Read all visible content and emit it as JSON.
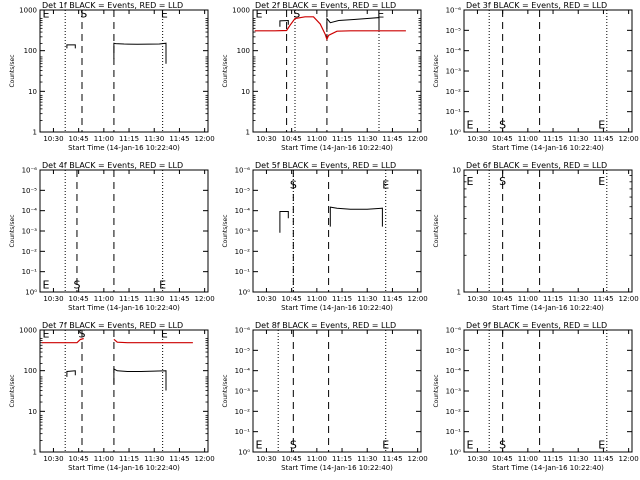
{
  "colors": {
    "events": "#000000",
    "lld": "#cc0000",
    "axes": "#000000",
    "background": "#ffffff"
  },
  "chart_data": [
    {
      "type": "line",
      "title": "Det 1f BLACK = Events, RED = LLD",
      "xlabel": "Start Time (14-Jan-16 10:22:40)",
      "ylabel": "Counts/sec",
      "x_tick_labels": [
        "10:30",
        "10:45",
        "11:00",
        "11:15",
        "11:30",
        "11:45",
        "12:00"
      ],
      "xlim_minutes_after_1030": [
        -8,
        92
      ],
      "y_scale": "log",
      "y_tick_labels": [
        "1",
        "10",
        "100",
        "1000"
      ],
      "ylim": [
        1,
        1500
      ],
      "dotted_lines_at": [
        "10:37",
        "11:35"
      ],
      "dashed_lines_at": [
        "10:47",
        "11:06"
      ],
      "markers": [
        {
          "text": "E",
          "x": "10:25",
          "y": 1300
        },
        {
          "text": "S",
          "x": "10:48",
          "y": 1300
        },
        {
          "text": "E",
          "x": "11:36",
          "y": 1300
        }
      ],
      "series": [
        {
          "color": "events",
          "points": [
            [
              "10:38",
              150
            ],
            [
              "10:38",
              185
            ],
            [
              "10:43",
              185
            ],
            [
              "10:43",
              150
            ]
          ]
        },
        {
          "color": "events",
          "points": [
            [
              "11:06",
              80
            ],
            [
              "11:06",
              205
            ],
            [
              "11:07",
              200
            ],
            [
              "11:12",
              195
            ],
            [
              "11:20",
              192
            ],
            [
              "11:27",
              194
            ],
            [
              "11:33",
              195
            ],
            [
              "11:37",
              205
            ],
            [
              "11:37",
              60
            ]
          ]
        }
      ]
    },
    {
      "type": "line",
      "title": "Det 2f BLACK = Events, RED = LLD",
      "xlabel": "Start Time (14-Jan-16 10:22:40)",
      "ylabel": "Counts/sec",
      "x_tick_labels": [
        "10:30",
        "10:45",
        "11:00",
        "11:15",
        "11:30",
        "11:45",
        "12:00"
      ],
      "xlim_minutes_after_1030": [
        -8,
        92
      ],
      "y_scale": "log",
      "y_tick_labels": [
        "1",
        "10",
        "100",
        "1000"
      ],
      "ylim": [
        1,
        1500
      ],
      "dotted_lines_at": [
        "10:47",
        "11:37"
      ],
      "dashed_lines_at": [
        "10:42",
        "11:06"
      ],
      "markers": [
        {
          "text": "E",
          "x": "10:25",
          "y": 1300
        },
        {
          "text": "S",
          "x": "10:48",
          "y": 1300
        },
        {
          "text": "E",
          "x": "11:38",
          "y": 1300
        }
      ],
      "series": [
        {
          "color": "lld",
          "points": [
            [
              "10:23",
              430
            ],
            [
              "10:35",
              430
            ],
            [
              "10:42",
              440
            ],
            [
              "10:44",
              600
            ],
            [
              "10:47",
              900
            ],
            [
              "10:53",
              1000
            ],
            [
              "10:58",
              1000
            ],
            [
              "11:02",
              650
            ],
            [
              "11:05",
              350
            ],
            [
              "11:06",
              260
            ],
            [
              "11:07",
              330
            ],
            [
              "11:12",
              420
            ],
            [
              "11:20",
              430
            ],
            [
              "11:35",
              430
            ],
            [
              "11:45",
              430
            ],
            [
              "11:53",
              430
            ]
          ]
        },
        {
          "color": "events",
          "points": [
            [
              "10:38",
              550
            ],
            [
              "10:38",
              780
            ],
            [
              "10:43",
              800
            ],
            [
              "10:43",
              620
            ]
          ]
        },
        {
          "color": "events",
          "points": [
            [
              "11:06",
              400
            ],
            [
              "11:06",
              900
            ],
            [
              "11:08",
              700
            ],
            [
              "11:13",
              800
            ],
            [
              "11:22",
              850
            ],
            [
              "11:30",
              900
            ],
            [
              "11:37",
              950
            ],
            [
              "11:37",
              450
            ]
          ]
        }
      ]
    },
    {
      "type": "line",
      "title": "Det 3f BLACK = Events, RED = LLD",
      "xlabel": "Start Time (14-Jan-16 10:22:40)",
      "ylabel": "Counts/sec",
      "x_tick_labels": [
        "10:30",
        "10:45",
        "11:00",
        "11:15",
        "11:30",
        "11:45",
        "12:00"
      ],
      "xlim_minutes_after_1030": [
        -8,
        92
      ],
      "y_scale": "log",
      "y_tick_labels": [
        "10⁰",
        "10⁻¹",
        "10⁻²",
        "10⁻³",
        "10⁻⁴",
        "10⁻⁵",
        "10⁻⁶"
      ],
      "ylim": [
        1,
        2
      ],
      "dotted_lines_at": [
        "10:37",
        "11:47"
      ],
      "dashed_lines_at": [
        "10:45",
        "11:07"
      ],
      "markers": [
        {
          "text": "E",
          "x": "10:25",
          "y": 1.05
        },
        {
          "text": "S",
          "x": "10:45",
          "y": 1.05
        },
        {
          "text": "E",
          "x": "11:44",
          "y": 1.05
        }
      ],
      "series": []
    },
    {
      "type": "line",
      "title": "Det 4f BLACK = Events, RED = LLD",
      "xlabel": "Start Time (14-Jan-16 10:22:40)",
      "ylabel": "Counts/sec",
      "x_tick_labels": [
        "10:30",
        "10:45",
        "11:00",
        "11:15",
        "11:30",
        "11:45",
        "12:00"
      ],
      "xlim_minutes_after_1030": [
        -8,
        92
      ],
      "y_scale": "log",
      "y_tick_labels": [
        "10⁰",
        "10⁻¹",
        "10⁻²",
        "10⁻³",
        "10⁻⁴",
        "10⁻⁵",
        "10⁻⁶"
      ],
      "ylim": [
        1,
        2
      ],
      "dotted_lines_at": [
        "10:37",
        "11:35"
      ],
      "dashed_lines_at": [
        "10:44",
        "11:06"
      ],
      "markers": [
        {
          "text": "E",
          "x": "10:25",
          "y": 1.05
        },
        {
          "text": "S",
          "x": "10:44",
          "y": 1.05
        },
        {
          "text": "E",
          "x": "11:35",
          "y": 1.05
        }
      ],
      "series": []
    },
    {
      "type": "line",
      "title": "Det 5f BLACK = Events, RED = LLD",
      "xlabel": "Start Time (14-Jan-16 10:22:40)",
      "ylabel": "Counts/sec",
      "x_tick_labels": [
        "10:30",
        "10:45",
        "11:00",
        "11:15",
        "11:30",
        "11:45",
        "12:00"
      ],
      "xlim_minutes_after_1030": [
        -8,
        92
      ],
      "y_scale": "log",
      "y_tick_labels": [
        "10⁰",
        "10⁻¹",
        "10⁻²",
        "10⁻³",
        "10⁻⁴",
        "10⁻⁵",
        "10⁻⁶"
      ],
      "ylim": [
        1,
        2
      ],
      "dotted_lines_at": [
        "10:46",
        "11:41"
      ],
      "dashed_lines_at": [
        "10:46",
        "11:07"
      ],
      "markers": [
        {
          "text": "S",
          "x": "10:46",
          "y": 1.85
        },
        {
          "text": "E",
          "x": "11:41",
          "y": 1.85
        }
      ],
      "series": [
        {
          "color": "events",
          "points": [
            [
              "10:38",
              1.4
            ],
            [
              "10:38",
              1.58
            ],
            [
              "10:43",
              1.58
            ],
            [
              "10:43",
              1.52
            ]
          ]
        },
        {
          "color": "events",
          "points": [
            [
              "11:08",
              1.45
            ],
            [
              "11:08",
              1.62
            ],
            [
              "11:12",
              1.61
            ],
            [
              "11:20",
              1.6
            ],
            [
              "11:30",
              1.6
            ],
            [
              "11:39",
              1.61
            ],
            [
              "11:39",
              1.45
            ]
          ]
        }
      ]
    },
    {
      "type": "line",
      "title": "Det 6f BLACK = Events, RED = LLD",
      "xlabel": "Start Time (14-Jan-16 10:22:40)",
      "ylabel": "Counts/sec",
      "x_tick_labels": [
        "10:30",
        "10:45",
        "11:00",
        "11:15",
        "11:30",
        "11:45",
        "12:00"
      ],
      "xlim_minutes_after_1030": [
        -8,
        92
      ],
      "y_scale": "log",
      "y_tick_labels": [
        "1",
        "10"
      ],
      "ylim": [
        1,
        10
      ],
      "dotted_lines_at": [
        "10:37",
        "11:47"
      ],
      "dashed_lines_at": [
        "10:45",
        "11:07"
      ],
      "markers": [
        {
          "text": "E",
          "x": "10:25",
          "y": 8.3
        },
        {
          "text": "S",
          "x": "10:45",
          "y": 8.3
        },
        {
          "text": "E",
          "x": "11:44",
          "y": 8.3
        }
      ],
      "series": []
    },
    {
      "type": "line",
      "title": "Det 7f BLACK = Events, RED = LLD",
      "xlabel": "Start Time (14-Jan-16 10:22:40)",
      "ylabel": "Counts/sec",
      "x_tick_labels": [
        "10:30",
        "10:45",
        "11:00",
        "11:15",
        "11:30",
        "11:45",
        "12:00"
      ],
      "xlim_minutes_after_1030": [
        -8,
        92
      ],
      "y_scale": "log",
      "y_tick_labels": [
        "1",
        "10",
        "100",
        "1000"
      ],
      "ylim": [
        1,
        1500
      ],
      "dotted_lines_at": [
        "10:37",
        "11:35"
      ],
      "dashed_lines_at": [
        "10:47",
        "11:06"
      ],
      "markers": [
        {
          "text": "E",
          "x": "10:25",
          "y": 1300
        },
        {
          "text": "S",
          "x": "10:47",
          "y": 1300
        },
        {
          "text": "E",
          "x": "11:36",
          "y": 1300
        }
      ],
      "series": [
        {
          "color": "lld",
          "points": [
            [
              "10:23",
              700
            ],
            [
              "10:35",
              700
            ],
            [
              "10:44",
              700
            ],
            [
              "10:46",
              850
            ],
            [
              "10:48",
              900
            ]
          ]
        },
        {
          "color": "lld",
          "points": [
            [
              "11:06",
              860
            ],
            [
              "11:08",
              720
            ],
            [
              "11:14",
              700
            ],
            [
              "11:25",
              700
            ],
            [
              "11:36",
              700
            ],
            [
              "11:50",
              700
            ],
            [
              "11:53",
              700
            ]
          ]
        },
        {
          "color": "events",
          "points": [
            [
              "10:38",
              90
            ],
            [
              "10:38",
              125
            ],
            [
              "10:43",
              130
            ],
            [
              "10:43",
              100
            ]
          ]
        },
        {
          "color": "events",
          "points": [
            [
              "11:06",
              60
            ],
            [
              "11:06",
              145
            ],
            [
              "11:08",
              130
            ],
            [
              "11:14",
              125
            ],
            [
              "11:22",
              125
            ],
            [
              "11:30",
              128
            ],
            [
              "11:37",
              130
            ],
            [
              "11:37",
              40
            ]
          ]
        }
      ]
    },
    {
      "type": "line",
      "title": "Det 8f BLACK = Events, RED = LLD",
      "xlabel": "Start Time (14-Jan-16 10:22:40)",
      "ylabel": "Counts/sec",
      "x_tick_labels": [
        "10:30",
        "10:45",
        "11:00",
        "11:15",
        "11:30",
        "11:45",
        "12:00"
      ],
      "xlim_minutes_after_1030": [
        -8,
        92
      ],
      "y_scale": "log",
      "y_tick_labels": [
        "10⁰",
        "10⁻¹",
        "10⁻²",
        "10⁻³",
        "10⁻⁴",
        "10⁻⁵",
        "10⁻⁶"
      ],
      "ylim": [
        1,
        2
      ],
      "dotted_lines_at": [
        "10:37",
        "11:41"
      ],
      "dashed_lines_at": [
        "10:46",
        "11:07"
      ],
      "markers": [
        {
          "text": "E",
          "x": "10:25",
          "y": 1.05
        },
        {
          "text": "S",
          "x": "10:46",
          "y": 1.05
        },
        {
          "text": "E",
          "x": "11:41",
          "y": 1.05
        }
      ],
      "series": []
    },
    {
      "type": "line",
      "title": "Det 9f BLACK = Events, RED = LLD",
      "xlabel": "Start Time (14-Jan-16 10:22:40)",
      "ylabel": "Counts/sec",
      "x_tick_labels": [
        "10:30",
        "10:45",
        "11:00",
        "11:15",
        "11:30",
        "11:45",
        "12:00"
      ],
      "xlim_minutes_after_1030": [
        -8,
        92
      ],
      "y_scale": "log",
      "y_tick_labels": [
        "10⁰",
        "10⁻¹",
        "10⁻²",
        "10⁻³",
        "10⁻⁴",
        "10⁻⁵",
        "10⁻⁶"
      ],
      "ylim": [
        1,
        2
      ],
      "dotted_lines_at": [
        "10:37",
        "11:47"
      ],
      "dashed_lines_at": [
        "10:45",
        "11:07"
      ],
      "markers": [
        {
          "text": "E",
          "x": "10:25",
          "y": 1.05
        },
        {
          "text": "S",
          "x": "10:45",
          "y": 1.05
        },
        {
          "text": "E",
          "x": "11:44",
          "y": 1.05
        }
      ],
      "series": []
    }
  ]
}
